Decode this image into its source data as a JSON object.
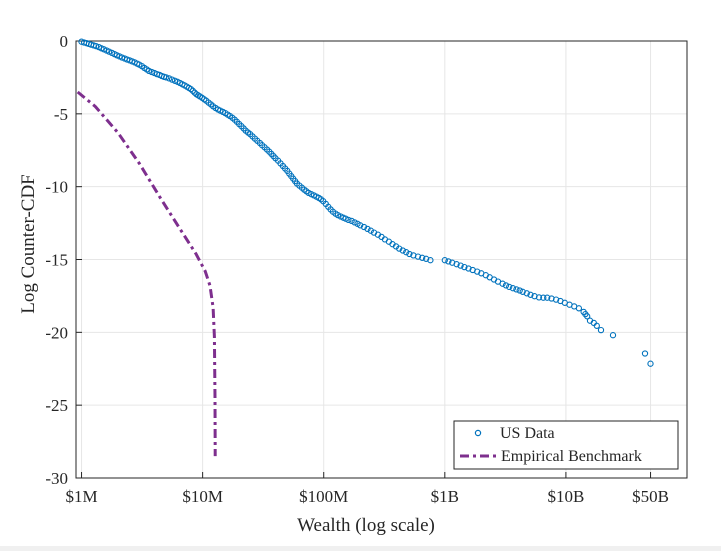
{
  "chart_data": {
    "type": "scatter",
    "xlabel": "Wealth (log scale)",
    "ylabel": "Log Counter-CDF",
    "x_scale": "log",
    "xlim": [
      900000,
      100000000000
    ],
    "ylim": [
      -30,
      0
    ],
    "grid": true,
    "legend_position": "bottom-right",
    "x_ticks": [
      {
        "value": 1000000,
        "label": "$1M"
      },
      {
        "value": 10000000,
        "label": "$10M"
      },
      {
        "value": 100000000,
        "label": "$100M"
      },
      {
        "value": 1000000000,
        "label": "$1B"
      },
      {
        "value": 10000000000,
        "label": "$10B"
      },
      {
        "value": 50000000000,
        "label": "$50B"
      }
    ],
    "y_ticks": [
      {
        "value": 0,
        "label": "0"
      },
      {
        "value": -5,
        "label": "-5"
      },
      {
        "value": -10,
        "label": "-10"
      },
      {
        "value": -15,
        "label": "-15"
      },
      {
        "value": -20,
        "label": "-20"
      },
      {
        "value": -25,
        "label": "-25"
      },
      {
        "value": -30,
        "label": "-30"
      }
    ],
    "series": [
      {
        "name": "US Data",
        "style": "markers",
        "color": "#0072bd",
        "points": [
          [
            1000000,
            -0.05
          ],
          [
            1050000,
            -0.1
          ],
          [
            1100000,
            -0.15
          ],
          [
            1150000,
            -0.2
          ],
          [
            1200000,
            -0.25
          ],
          [
            1260000,
            -0.3
          ],
          [
            1320000,
            -0.35
          ],
          [
            1390000,
            -0.42
          ],
          [
            1460000,
            -0.5
          ],
          [
            1530000,
            -0.57
          ],
          [
            1610000,
            -0.65
          ],
          [
            1690000,
            -0.73
          ],
          [
            1780000,
            -0.82
          ],
          [
            1870000,
            -0.9
          ],
          [
            1960000,
            -0.98
          ],
          [
            2060000,
            -1.06
          ],
          [
            2160000,
            -1.13
          ],
          [
            2270000,
            -1.2
          ],
          [
            2380000,
            -1.27
          ],
          [
            2500000,
            -1.33
          ],
          [
            2620000,
            -1.4
          ],
          [
            2750000,
            -1.47
          ],
          [
            2880000,
            -1.55
          ],
          [
            3000000,
            -1.62
          ],
          [
            3150000,
            -1.72
          ],
          [
            3300000,
            -1.85
          ],
          [
            3450000,
            -1.95
          ],
          [
            3600000,
            -2.05
          ],
          [
            3800000,
            -2.13
          ],
          [
            4000000,
            -2.2
          ],
          [
            4200000,
            -2.27
          ],
          [
            4400000,
            -2.33
          ],
          [
            4600000,
            -2.4
          ],
          [
            4800000,
            -2.46
          ],
          [
            5000000,
            -2.5
          ],
          [
            5300000,
            -2.57
          ],
          [
            5600000,
            -2.65
          ],
          [
            5900000,
            -2.73
          ],
          [
            6200000,
            -2.8
          ],
          [
            6500000,
            -2.88
          ],
          [
            6800000,
            -2.97
          ],
          [
            7100000,
            -3.05
          ],
          [
            7400000,
            -3.13
          ],
          [
            7700000,
            -3.22
          ],
          [
            8000000,
            -3.3
          ],
          [
            8300000,
            -3.42
          ],
          [
            8600000,
            -3.55
          ],
          [
            8900000,
            -3.66
          ],
          [
            9200000,
            -3.73
          ],
          [
            9500000,
            -3.8
          ],
          [
            9900000,
            -3.9
          ],
          [
            10300000,
            -4.0
          ],
          [
            10700000,
            -4.1
          ],
          [
            11200000,
            -4.23
          ],
          [
            11700000,
            -4.35
          ],
          [
            12200000,
            -4.48
          ],
          [
            12800000,
            -4.6
          ],
          [
            13400000,
            -4.7
          ],
          [
            14000000,
            -4.78
          ],
          [
            14700000,
            -4.87
          ],
          [
            15400000,
            -4.95
          ],
          [
            16100000,
            -5.05
          ],
          [
            16800000,
            -5.15
          ],
          [
            17600000,
            -5.27
          ],
          [
            18400000,
            -5.4
          ],
          [
            19200000,
            -5.55
          ],
          [
            20000000,
            -5.7
          ],
          [
            20900000,
            -5.85
          ],
          [
            21800000,
            -6.0
          ],
          [
            22700000,
            -6.15
          ],
          [
            23700000,
            -6.28
          ],
          [
            24700000,
            -6.4
          ],
          [
            25800000,
            -6.55
          ],
          [
            27000000,
            -6.7
          ],
          [
            28300000,
            -6.85
          ],
          [
            29700000,
            -7.0
          ],
          [
            31000000,
            -7.15
          ],
          [
            32500000,
            -7.3
          ],
          [
            34000000,
            -7.45
          ],
          [
            35500000,
            -7.6
          ],
          [
            37000000,
            -7.75
          ],
          [
            38500000,
            -7.9
          ],
          [
            40000000,
            -8.05
          ],
          [
            42000000,
            -8.22
          ],
          [
            44000000,
            -8.4
          ],
          [
            46000000,
            -8.58
          ],
          [
            48000000,
            -8.75
          ],
          [
            50000000,
            -8.92
          ],
          [
            52000000,
            -9.1
          ],
          [
            54000000,
            -9.28
          ],
          [
            56000000,
            -9.45
          ],
          [
            58000000,
            -9.62
          ],
          [
            60000000,
            -9.78
          ],
          [
            63000000,
            -9.93
          ],
          [
            66000000,
            -10.07
          ],
          [
            69000000,
            -10.2
          ],
          [
            72000000,
            -10.32
          ],
          [
            75000000,
            -10.43
          ],
          [
            79000000,
            -10.52
          ],
          [
            83000000,
            -10.6
          ],
          [
            87000000,
            -10.68
          ],
          [
            91000000,
            -10.77
          ],
          [
            95000000,
            -10.87
          ],
          [
            99000000,
            -11.0
          ],
          [
            104000000,
            -11.18
          ],
          [
            109000000,
            -11.38
          ],
          [
            114000000,
            -11.56
          ],
          [
            119000000,
            -11.72
          ],
          [
            125000000,
            -11.85
          ],
          [
            131000000,
            -11.95
          ],
          [
            138000000,
            -12.05
          ],
          [
            145000000,
            -12.13
          ],
          [
            152000000,
            -12.2
          ],
          [
            160000000,
            -12.28
          ],
          [
            170000000,
            -12.35
          ],
          [
            180000000,
            -12.45
          ],
          [
            190000000,
            -12.55
          ],
          [
            200000000,
            -12.65
          ],
          [
            215000000,
            -12.77
          ],
          [
            230000000,
            -12.9
          ],
          [
            245000000,
            -13.02
          ],
          [
            260000000,
            -13.15
          ],
          [
            280000000,
            -13.3
          ],
          [
            300000000,
            -13.45
          ],
          [
            320000000,
            -13.62
          ],
          [
            345000000,
            -13.78
          ],
          [
            370000000,
            -13.95
          ],
          [
            395000000,
            -14.1
          ],
          [
            420000000,
            -14.25
          ],
          [
            450000000,
            -14.38
          ],
          [
            480000000,
            -14.5
          ],
          [
            510000000,
            -14.62
          ],
          [
            550000000,
            -14.72
          ],
          [
            600000000,
            -14.8
          ],
          [
            650000000,
            -14.88
          ],
          [
            700000000,
            -14.95
          ],
          [
            760000000,
            -15.05
          ],
          [
            1000000000,
            -15.05
          ],
          [
            1070000000,
            -15.13
          ],
          [
            1150000000,
            -15.22
          ],
          [
            1250000000,
            -15.32
          ],
          [
            1350000000,
            -15.42
          ],
          [
            1450000000,
            -15.52
          ],
          [
            1570000000,
            -15.62
          ],
          [
            1700000000,
            -15.72
          ],
          [
            1850000000,
            -15.83
          ],
          [
            2000000000,
            -15.95
          ],
          [
            2180000000,
            -16.08
          ],
          [
            2350000000,
            -16.22
          ],
          [
            2550000000,
            -16.37
          ],
          [
            2750000000,
            -16.52
          ],
          [
            3000000000,
            -16.66
          ],
          [
            3200000000,
            -16.78
          ],
          [
            3400000000,
            -16.88
          ],
          [
            3650000000,
            -16.97
          ],
          [
            3900000000,
            -17.05
          ],
          [
            4150000000,
            -17.13
          ],
          [
            4400000000,
            -17.22
          ],
          [
            4750000000,
            -17.32
          ],
          [
            5100000000,
            -17.42
          ],
          [
            5500000000,
            -17.52
          ],
          [
            6000000000,
            -17.6
          ],
          [
            6500000000,
            -17.62
          ],
          [
            7000000000,
            -17.62
          ],
          [
            7600000000,
            -17.68
          ],
          [
            8300000000,
            -17.75
          ],
          [
            9000000000,
            -17.85
          ],
          [
            9800000000,
            -17.97
          ],
          [
            10700000000,
            -18.1
          ],
          [
            11700000000,
            -18.22
          ],
          [
            12800000000,
            -18.35
          ],
          [
            14000000000,
            -18.6
          ],
          [
            14500000000,
            -18.75
          ],
          [
            15000000000,
            -18.9
          ],
          [
            15800000000,
            -19.2
          ],
          [
            17000000000,
            -19.35
          ],
          [
            18000000000,
            -19.55
          ],
          [
            19500000000,
            -19.85
          ],
          [
            24500000000,
            -20.2
          ],
          [
            45000000000,
            -21.45
          ],
          [
            50000000000,
            -22.15
          ]
        ]
      },
      {
        "name": "Empirical Benchmark",
        "style": "dash-dot",
        "color": "#7e2f8e",
        "points": [
          [
            930000,
            -3.5
          ],
          [
            1300000,
            -4.5
          ],
          [
            2000000,
            -6.3
          ],
          [
            3000000,
            -8.4
          ],
          [
            4500000,
            -10.8
          ],
          [
            6500000,
            -12.9
          ],
          [
            8800000,
            -14.6
          ],
          [
            10500000,
            -15.8
          ],
          [
            11500000,
            -16.8
          ],
          [
            12200000,
            -18.3
          ],
          [
            12500000,
            -20.3
          ],
          [
            12650000,
            -24.5
          ],
          [
            12700000,
            -28.5
          ]
        ]
      }
    ]
  }
}
